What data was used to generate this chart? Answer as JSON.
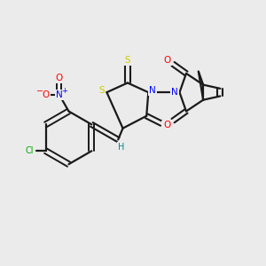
{
  "background_color": "#ebebeb",
  "bond_color": "#1a1a1a",
  "atom_colors": {
    "O": "#ff0000",
    "N": "#0000ff",
    "S": "#cccc00",
    "Cl": "#00aa00",
    "C": "#1a1a1a",
    "H": "#008888"
  },
  "figsize": [
    3.0,
    3.0
  ],
  "dpi": 100
}
